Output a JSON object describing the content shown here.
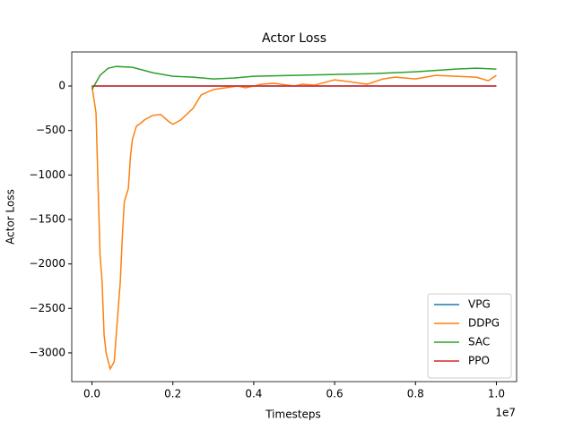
{
  "chart_data": {
    "type": "line",
    "title": "Actor Loss",
    "x_label": "Timesteps",
    "x_offset_label": "1e7",
    "y_label": "Actor Loss",
    "xlim": [
      -0.05,
      1.05
    ],
    "xticks": [
      {
        "value": 0,
        "label": "0.0"
      },
      0.2,
      0.4,
      0.6,
      0.8,
      {
        "value": 1,
        "label": "1.0"
      }
    ],
    "ylim": [
      -3323,
      383
    ],
    "yticks": [
      {
        "value": -3000,
        "label": "−3000"
      },
      {
        "value": -2500,
        "label": "−2500"
      },
      {
        "value": -2000,
        "label": "−2000"
      },
      {
        "value": -1500,
        "label": "−1500"
      },
      {
        "value": -1000,
        "label": "−1000"
      },
      {
        "value": -500,
        "label": "−500"
      },
      0
    ],
    "legend": "lower right",
    "series": [
      {
        "name": "VPG",
        "color": "#1f77b4",
        "x": [
          0,
          1
        ],
        "values": [
          0,
          0
        ]
      },
      {
        "name": "DDPG",
        "color": "#ff7f0e",
        "x": [
          0,
          0.01,
          0.02,
          0.025,
          0.03,
          0.035,
          0.045,
          0.055,
          0.06,
          0.07,
          0.075,
          0.08,
          0.09,
          0.095,
          0.1,
          0.11,
          0.12,
          0.13,
          0.15,
          0.17,
          0.19,
          0.2,
          0.22,
          0.25,
          0.27,
          0.3,
          0.33,
          0.36,
          0.38,
          0.42,
          0.45,
          0.5,
          0.52,
          0.55,
          0.6,
          0.65,
          0.68,
          0.72,
          0.75,
          0.8,
          0.85,
          0.9,
          0.95,
          0.98,
          1.0
        ],
        "values": [
          0,
          -300,
          -1900,
          -2200,
          -2800,
          -3000,
          -3180,
          -3100,
          -2800,
          -2200,
          -1700,
          -1300,
          -1150,
          -800,
          -600,
          -450,
          -420,
          -380,
          -330,
          -320,
          -400,
          -430,
          -380,
          -250,
          -100,
          -40,
          -20,
          0,
          -20,
          20,
          30,
          0,
          20,
          10,
          70,
          40,
          20,
          80,
          100,
          80,
          120,
          110,
          100,
          60,
          120
        ]
      },
      {
        "name": "SAC",
        "color": "#2ca02c",
        "x": [
          0,
          0.02,
          0.04,
          0.06,
          0.1,
          0.15,
          0.2,
          0.25,
          0.3,
          0.35,
          0.4,
          0.5,
          0.6,
          0.7,
          0.8,
          0.9,
          0.95,
          1.0
        ],
        "values": [
          -40,
          120,
          200,
          220,
          210,
          150,
          110,
          100,
          80,
          90,
          110,
          120,
          130,
          140,
          160,
          190,
          200,
          190
        ]
      },
      {
        "name": "PPO",
        "color": "#d62728",
        "x": [
          0,
          1
        ],
        "values": [
          0,
          0
        ]
      }
    ]
  }
}
